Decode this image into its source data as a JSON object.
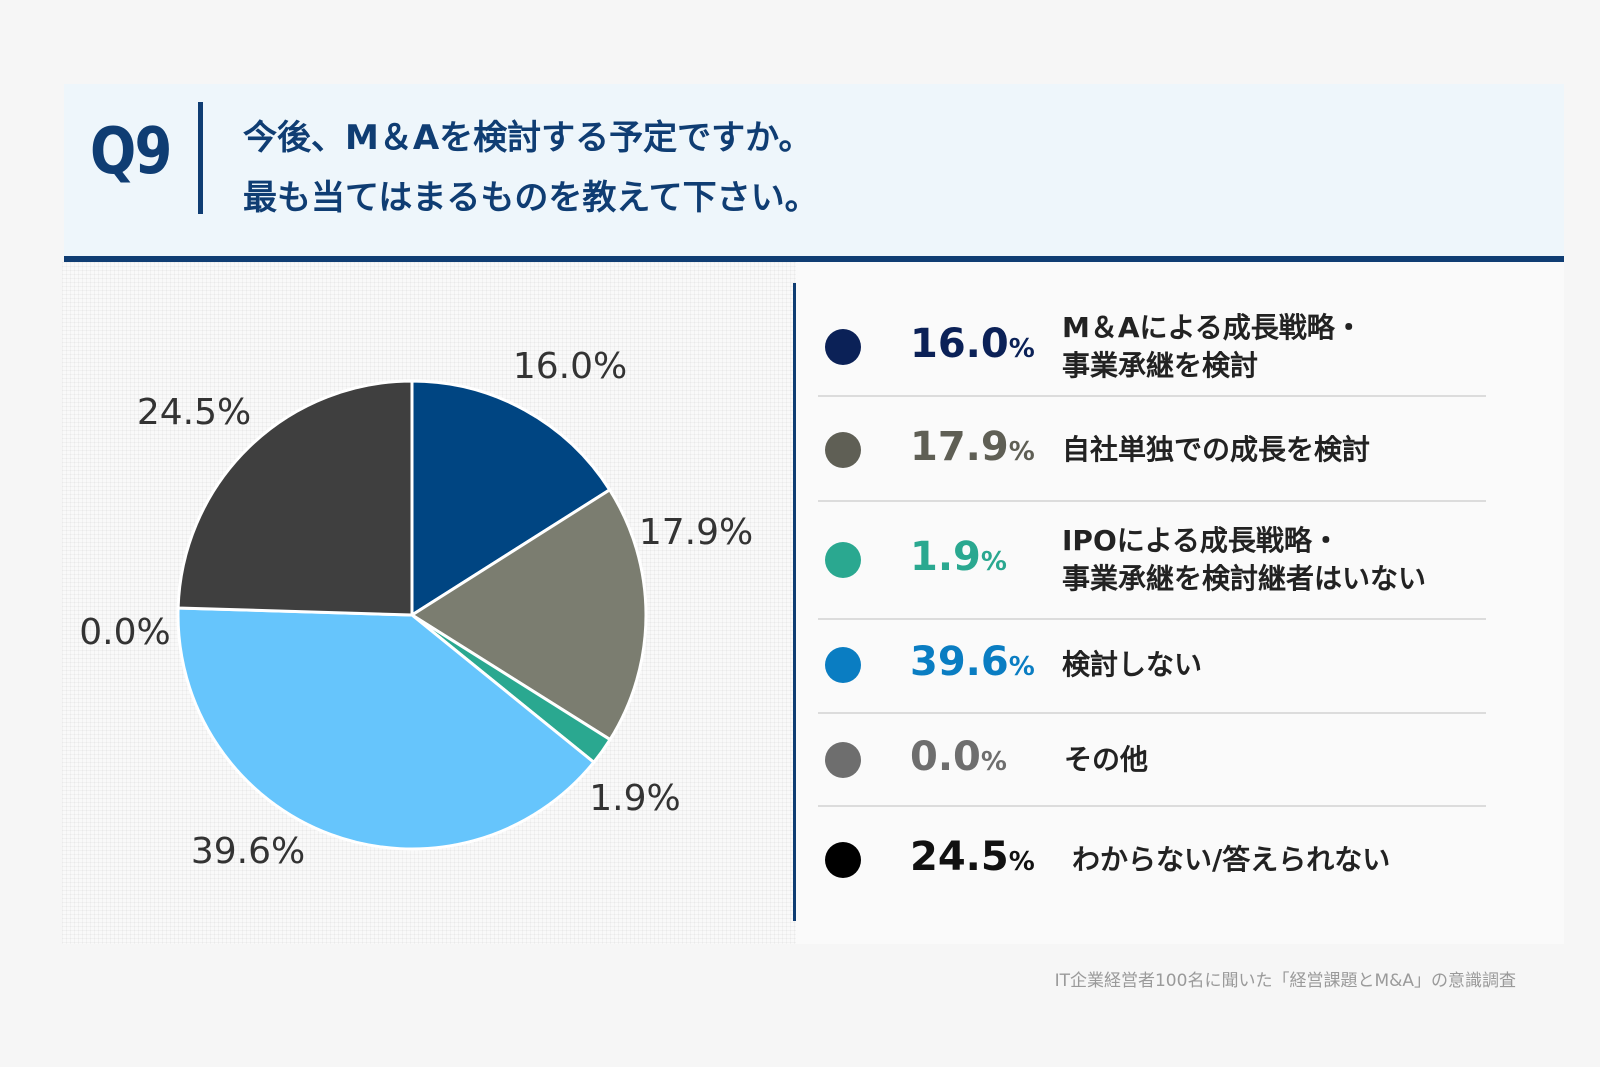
{
  "header": {
    "q_number": "Q9",
    "question_line1": "今後、M＆Aを検討する予定ですか。",
    "question_line2": "最も当てはまるものを教えて下さい。"
  },
  "chart_data": {
    "type": "pie",
    "title": "",
    "categories": [
      "M＆Aによる成長戦略・事業承継を検討",
      "自社単独での成長を検討",
      "IPOによる成長戦略・事業承継を検討継者はいない",
      "検討しない",
      "その他",
      "わからない/答えられない"
    ],
    "values": [
      16.0,
      17.9,
      1.9,
      39.6,
      0.0,
      24.5
    ],
    "value_labels": [
      "16.0%",
      "17.9%",
      "1.9%",
      "39.6%",
      "0.0%",
      "24.5%"
    ],
    "slice_colors": [
      "#004582",
      "#7b7d70",
      "#2aa890",
      "#66c5fc",
      "#6e6e6e",
      "#3f3f3f"
    ],
    "unit": "%"
  },
  "legend": [
    {
      "pct": "16.0",
      "unit": "%",
      "line1": "M＆Aによる成長戦略・",
      "line2": "事業承継を検討",
      "dot_color": "#0b2157",
      "pct_color": "#0b2157"
    },
    {
      "pct": "17.9",
      "unit": "%",
      "line1": "自社単独での成長を検討",
      "line2": "",
      "dot_color": "#5f5f55",
      "pct_color": "#5f5f55"
    },
    {
      "pct": "1.9",
      "unit": "%",
      "line1": "IPOによる成長戦略・",
      "line2": "事業承継を検討継者はいない",
      "dot_color": "#2aa890",
      "pct_color": "#2aa890"
    },
    {
      "pct": "39.6",
      "unit": "%",
      "line1": "検討しない",
      "line2": "",
      "dot_color": "#0a7dc2",
      "pct_color": "#0a7dc2"
    },
    {
      "pct": "0.0",
      "unit": "%",
      "line1": "その他",
      "line2": "",
      "dot_color": "#6e6e6e",
      "pct_color": "#6e6e6e"
    },
    {
      "pct": "24.5",
      "unit": "%",
      "line1": "わからない/答えられない",
      "line2": "",
      "dot_color": "#000000",
      "pct_color": "#111111"
    }
  ],
  "source": "IT企業経営者100名に聞いた「経営課題とM&A」の意識調査"
}
